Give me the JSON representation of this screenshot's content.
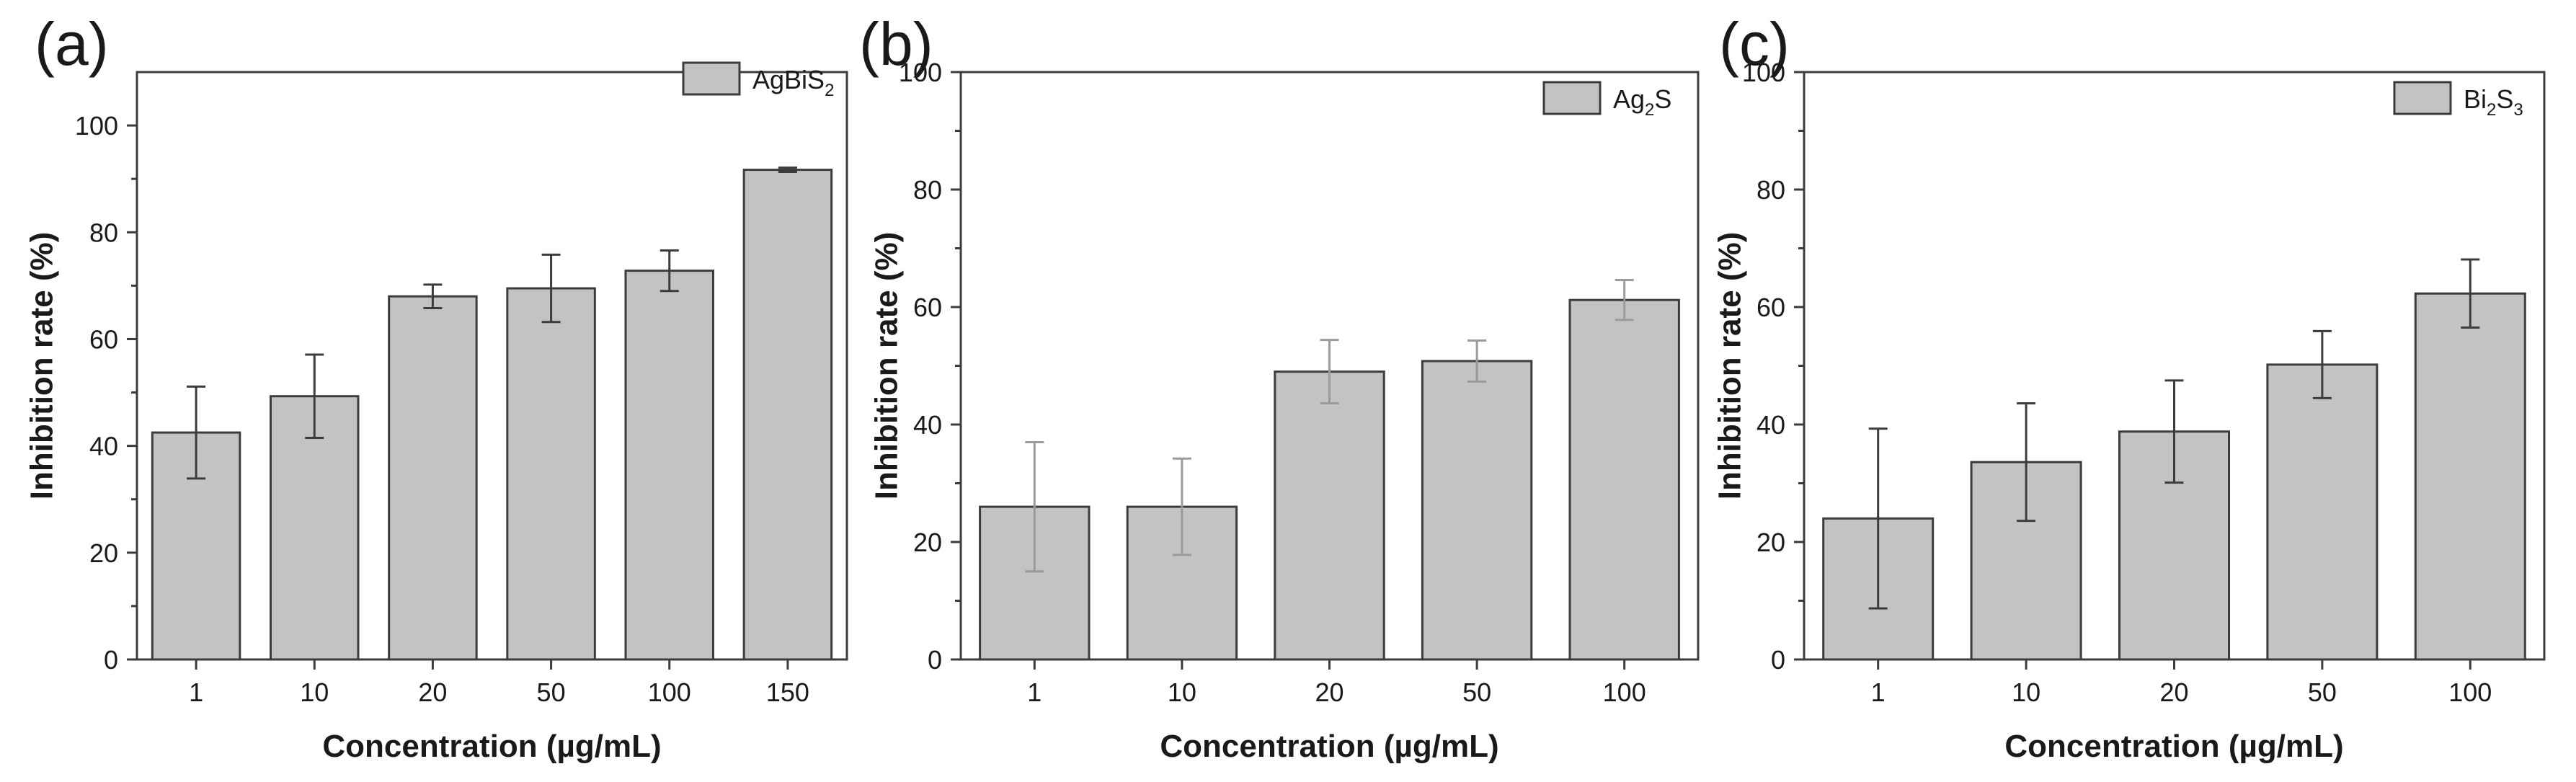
{
  "colors": {
    "bar_fill": "#c3c3c3",
    "bar_stroke": "#3c3c3c",
    "axis": "#3c3c3c",
    "error_bar_light": "#9a9a9a",
    "error_bar_dark": "#3c3c3c"
  },
  "chart_data": [
    {
      "panel": "(a)",
      "type": "bar",
      "categories": [
        "1",
        "10",
        "20",
        "50",
        "100",
        "150"
      ],
      "series": [
        {
          "name": "AgBiS2",
          "name_parts": {
            "base": "AgBiS",
            "sub": "2",
            "tail": ""
          },
          "values": [
            42.5,
            49.3,
            68.0,
            69.5,
            72.8,
            91.7
          ],
          "errors": [
            8.6,
            7.8,
            2.2,
            6.3,
            3.8,
            0.4
          ]
        }
      ],
      "xlabel": "Concentration (µg/mL)",
      "ylabel": "Inhibition rate (%)",
      "ylim": [
        0,
        110
      ],
      "yticks": [
        0,
        20,
        40,
        60,
        80,
        100
      ],
      "ytick_labels": [
        "0",
        "20",
        "40",
        "60",
        "80",
        "100"
      ],
      "grid": false,
      "legend": "top-right"
    },
    {
      "panel": "(b)",
      "type": "bar",
      "categories": [
        "1",
        "10",
        "20",
        "50",
        "100"
      ],
      "series": [
        {
          "name": "Ag2S",
          "name_parts": {
            "base": "Ag",
            "sub": "2",
            "tail": "S"
          },
          "values": [
            26.0,
            26.0,
            49.0,
            50.8,
            61.2
          ],
          "errors": [
            11.0,
            8.2,
            5.4,
            3.5,
            3.4
          ]
        }
      ],
      "xlabel": "Concentration (µg/mL)",
      "ylabel": "Inhibition rate (%)",
      "ylim": [
        0,
        100
      ],
      "yticks": [
        0,
        20,
        40,
        60,
        80,
        100
      ],
      "ytick_labels": [
        "0",
        "20",
        "40",
        "60",
        "80",
        "100"
      ],
      "grid": false,
      "legend": "top-right"
    },
    {
      "panel": "(c)",
      "type": "bar",
      "categories": [
        "1",
        "10",
        "20",
        "50",
        "100"
      ],
      "series": [
        {
          "name": "Bi2S3",
          "name_parts": {
            "base": "Bi",
            "sub": "2",
            "tail": "S",
            "sub2": "3"
          },
          "values": [
            24.0,
            33.6,
            38.8,
            50.2,
            62.3
          ],
          "errors": [
            15.3,
            10.0,
            8.7,
            5.7,
            5.8
          ]
        }
      ],
      "xlabel": "Concentration (µg/mL)",
      "ylabel": "Inhibition rate (%)",
      "ylim": [
        0,
        100
      ],
      "yticks": [
        0,
        20,
        40,
        60,
        80,
        100
      ],
      "ytick_labels": [
        "0",
        "20",
        "40",
        "60",
        "80",
        "100"
      ],
      "grid": false,
      "legend": "top-right"
    }
  ]
}
